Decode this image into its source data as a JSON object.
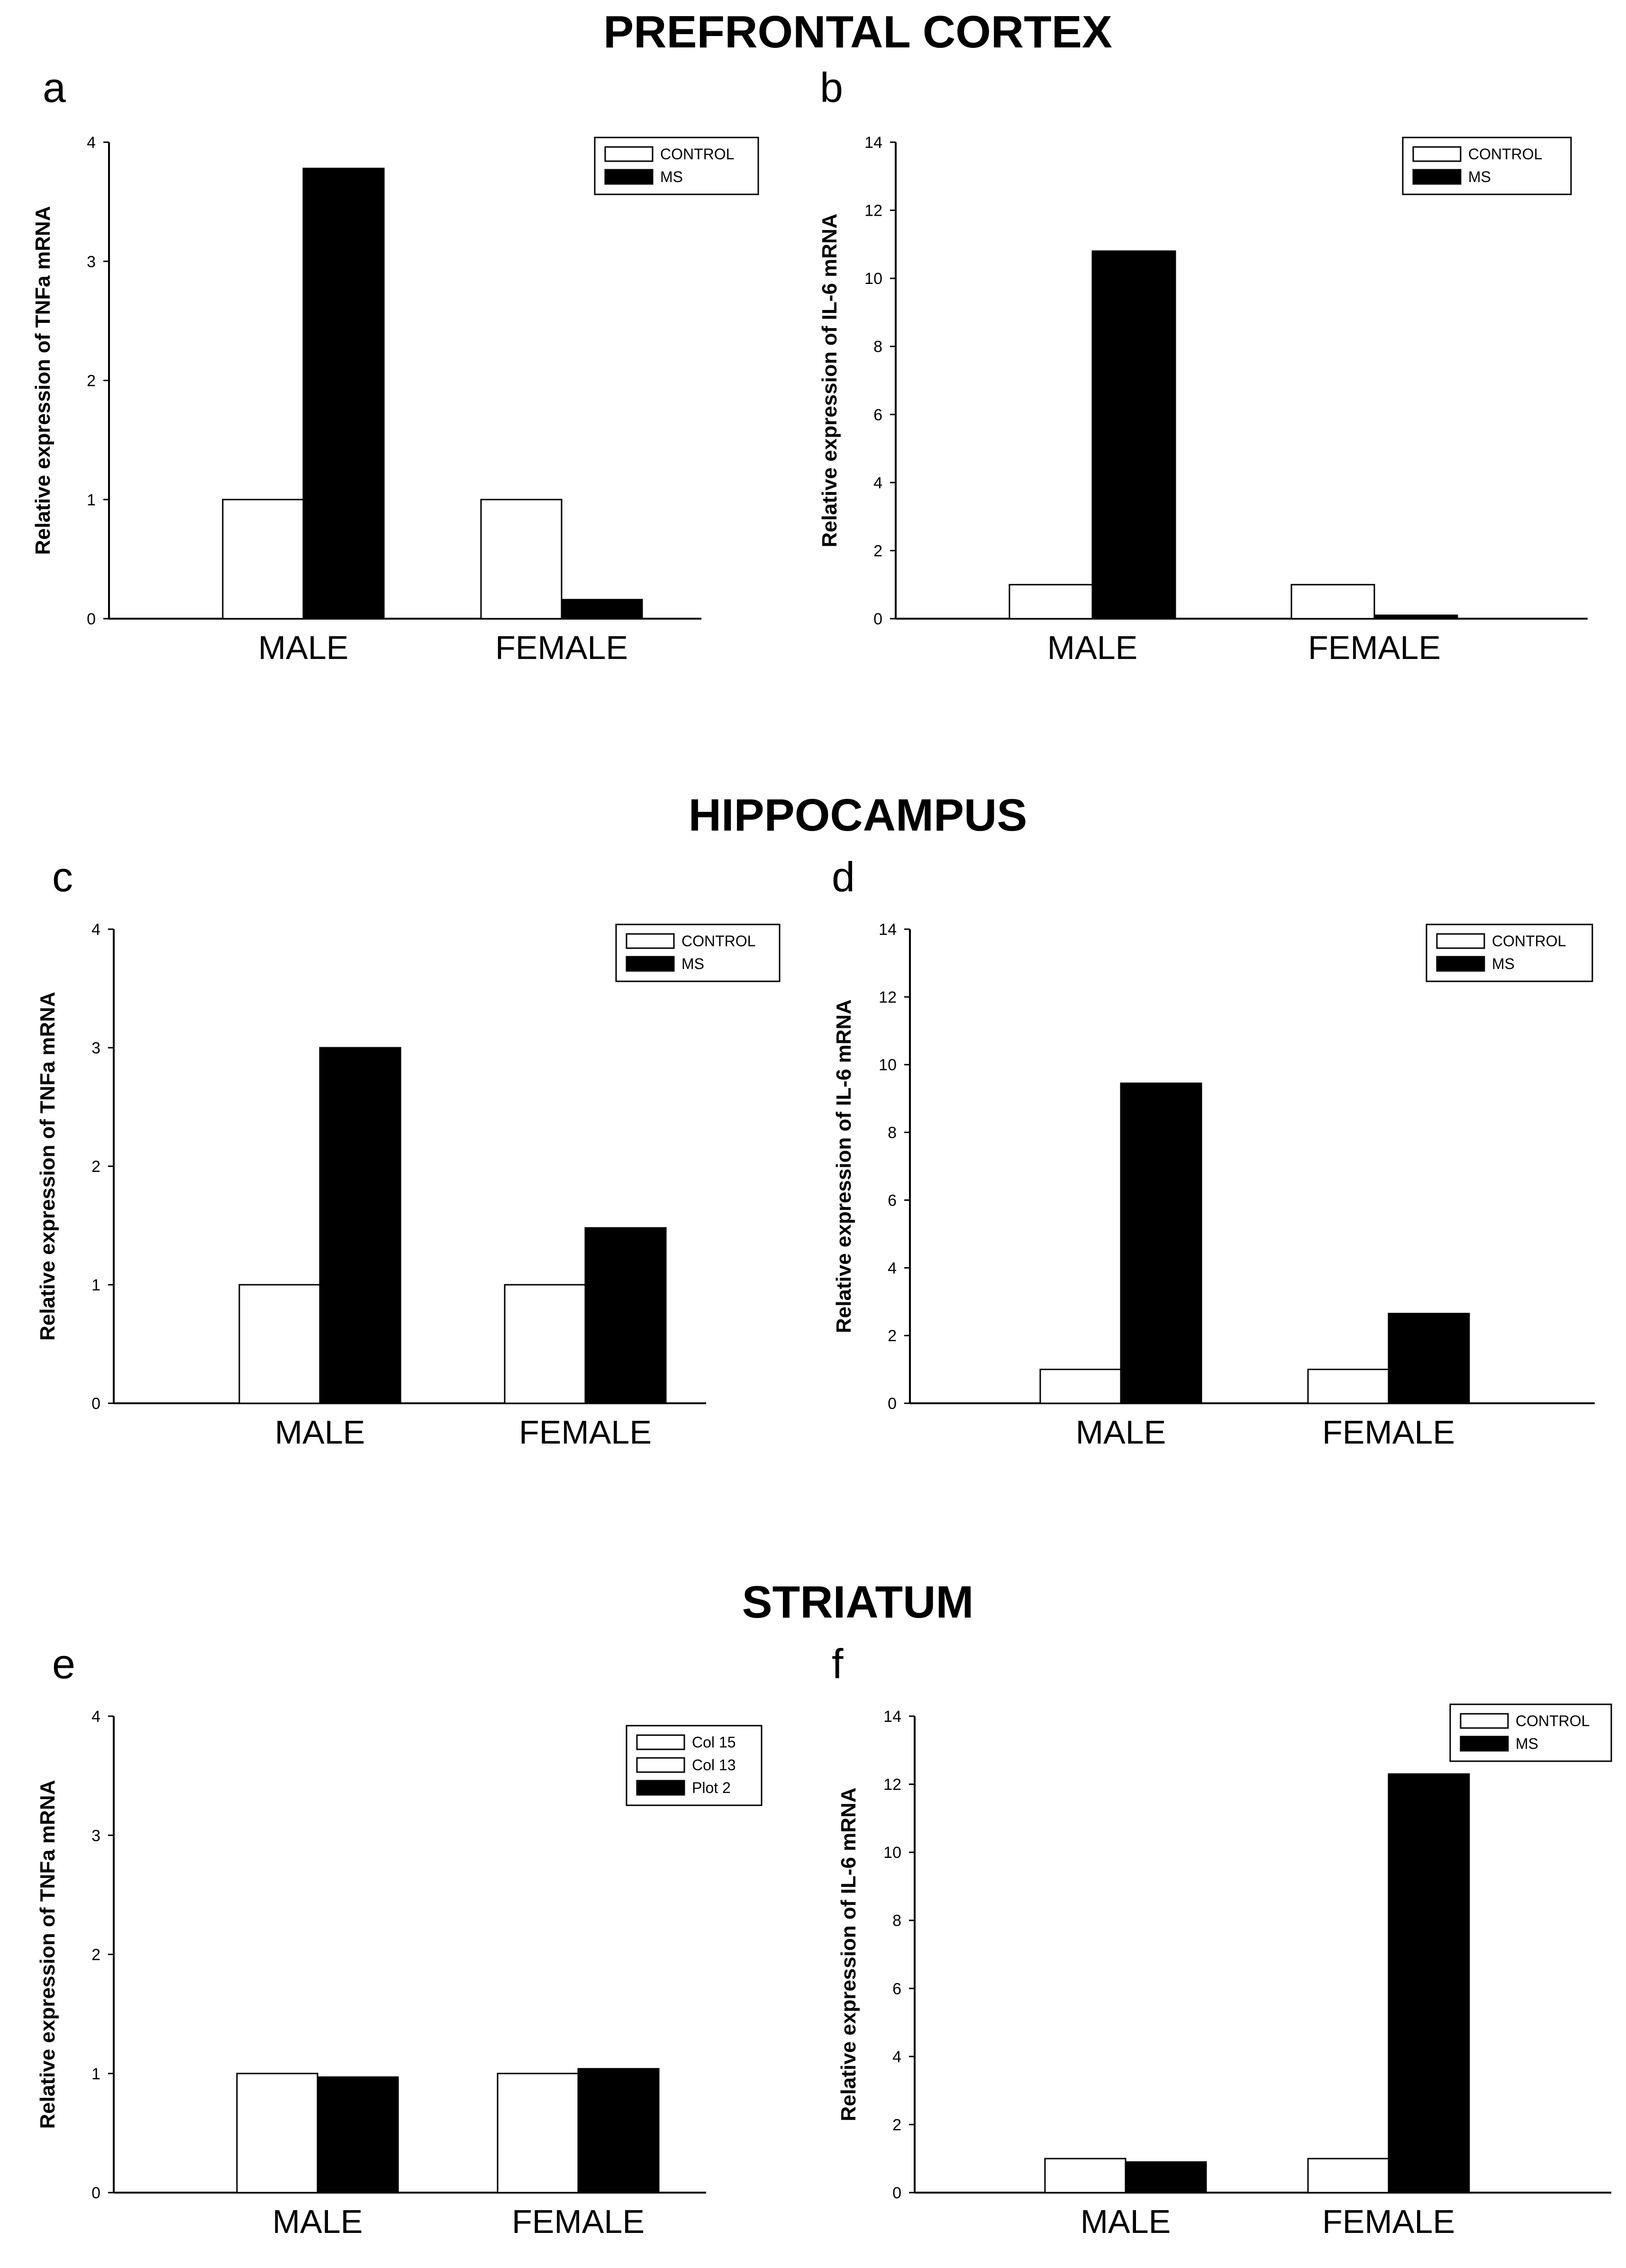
{
  "sections": [
    {
      "title": "PREFRONTAL CORTEX"
    },
    {
      "title": "HIPPOCAMPUS"
    },
    {
      "title": "STRIATUM"
    }
  ],
  "chart_data": [
    {
      "panel": "a",
      "type": "bar",
      "categories": [
        "MALE",
        "FEMALE"
      ],
      "series": [
        {
          "name": "CONTROL",
          "color": "#ffffff",
          "values": [
            1.0,
            1.0
          ]
        },
        {
          "name": "MS",
          "color": "#000000",
          "values": [
            3.78,
            0.16
          ]
        }
      ],
      "ylabel": "Relative expression of TNFa mRNA",
      "ylim": [
        0,
        4
      ],
      "yticks": [
        0,
        1,
        2,
        3,
        4
      ],
      "legend": "top-right"
    },
    {
      "panel": "b",
      "type": "bar",
      "categories": [
        "MALE",
        "FEMALE"
      ],
      "series": [
        {
          "name": "CONTROL",
          "color": "#ffffff",
          "values": [
            1.0,
            1.0
          ]
        },
        {
          "name": "MS",
          "color": "#000000",
          "values": [
            10.8,
            0.1
          ]
        }
      ],
      "ylabel": "Relative expression of IL-6 mRNA",
      "ylim": [
        0,
        14
      ],
      "yticks": [
        0,
        2,
        4,
        6,
        8,
        10,
        12,
        14
      ],
      "legend": "top-right"
    },
    {
      "panel": "c",
      "type": "bar",
      "categories": [
        "MALE",
        "FEMALE"
      ],
      "series": [
        {
          "name": "CONTROL",
          "color": "#ffffff",
          "values": [
            1.0,
            1.0
          ]
        },
        {
          "name": "MS",
          "color": "#000000",
          "values": [
            3.0,
            1.48
          ]
        }
      ],
      "ylabel": "Relative expression of TNFa mRNA",
      "ylim": [
        0,
        4
      ],
      "yticks": [
        0,
        1,
        2,
        3,
        4
      ],
      "legend": "top-right"
    },
    {
      "panel": "d",
      "type": "bar",
      "categories": [
        "MALE",
        "FEMALE"
      ],
      "series": [
        {
          "name": "CONTROL",
          "color": "#ffffff",
          "values": [
            1.0,
            1.0
          ]
        },
        {
          "name": "MS",
          "color": "#000000",
          "values": [
            9.45,
            2.65
          ]
        }
      ],
      "ylabel": "Relative expression of IL-6 mRNA",
      "ylim": [
        0,
        14
      ],
      "yticks": [
        0,
        2,
        4,
        6,
        8,
        10,
        12,
        14
      ],
      "legend": "top-right"
    },
    {
      "panel": "e",
      "type": "bar",
      "categories": [
        "MALE",
        "FEMALE"
      ],
      "series": [
        {
          "name": "Col 15",
          "color": "#ffffff",
          "values": [
            1.0,
            1.0
          ]
        },
        {
          "name": "Col 13",
          "color": "#ffffff",
          "values": [
            null,
            null
          ]
        },
        {
          "name": "Plot 2",
          "color": "#000000",
          "values": [
            0.97,
            1.04
          ]
        }
      ],
      "ylabel": "Relative expression of TNFa mRNA",
      "ylim": [
        0,
        4
      ],
      "yticks": [
        0,
        1,
        2,
        3,
        4
      ],
      "legend": "top-right"
    },
    {
      "panel": "f",
      "type": "bar",
      "categories": [
        "MALE",
        "FEMALE"
      ],
      "series": [
        {
          "name": "CONTROL",
          "color": "#ffffff",
          "values": [
            1.0,
            1.0
          ]
        },
        {
          "name": "MS",
          "color": "#000000",
          "values": [
            0.9,
            12.3
          ]
        }
      ],
      "ylabel": "Relative expression of IL-6 mRNA",
      "ylim": [
        0,
        14
      ],
      "yticks": [
        0,
        2,
        4,
        6,
        8,
        10,
        12,
        14
      ],
      "legend": "top-right"
    }
  ]
}
